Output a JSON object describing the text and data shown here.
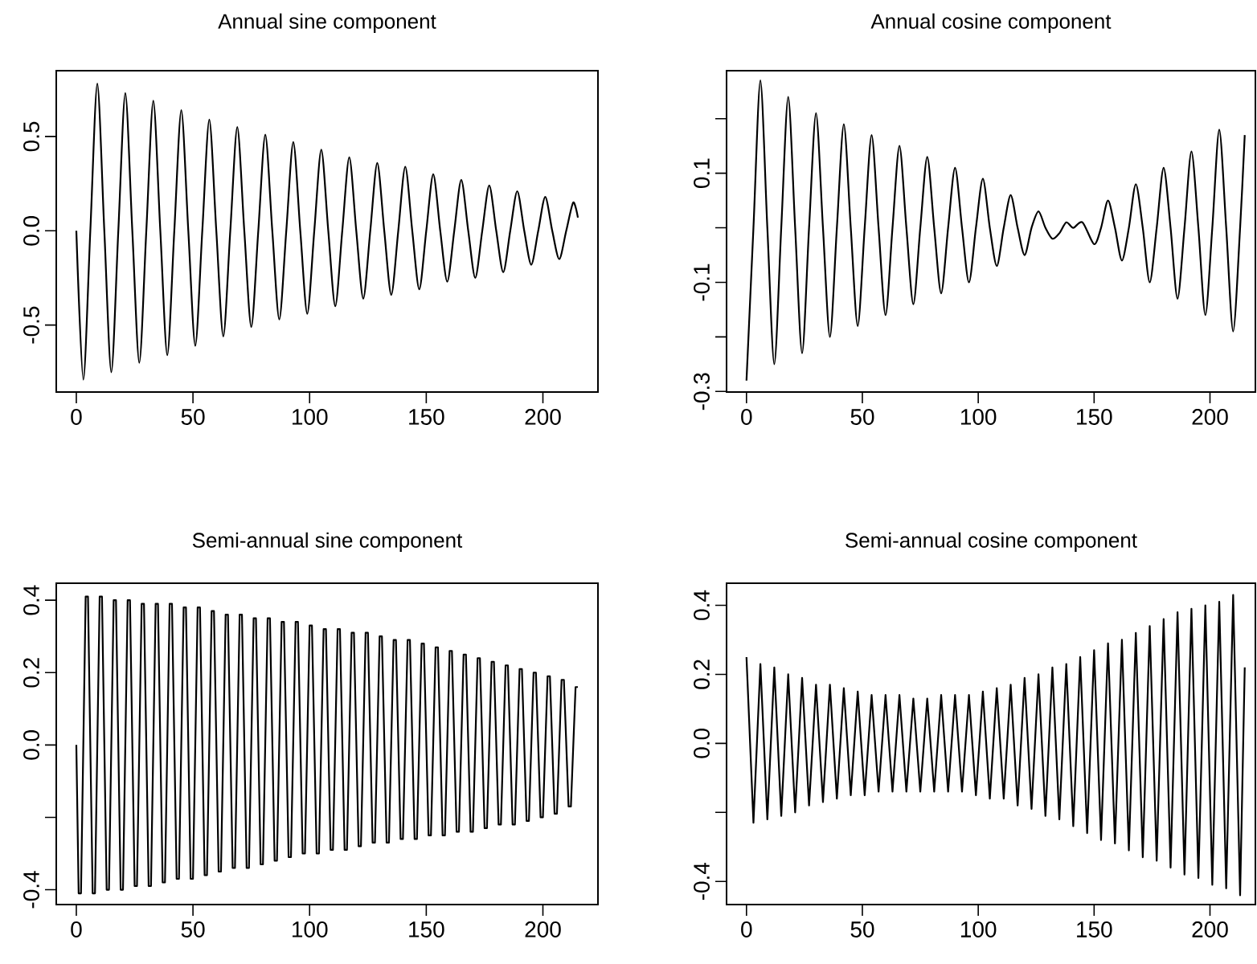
{
  "chart_data": [
    {
      "type": "line",
      "title": "Annual sine component",
      "color": "#000000",
      "xlim": [
        -8.6,
        223.6
      ],
      "xticks": [
        0,
        50,
        100,
        150,
        200
      ],
      "ylim": [
        -0.855,
        0.849
      ],
      "yticks": [
        -0.5,
        {
          "value": 0,
          "label": "0.0"
        },
        0.5
      ],
      "x": [
        0,
        3,
        6,
        9,
        12,
        15,
        18,
        21,
        24,
        27,
        30,
        33,
        36,
        39,
        42,
        45,
        48,
        51,
        54,
        57,
        60,
        63,
        66,
        69,
        72,
        75,
        78,
        81,
        84,
        87,
        90,
        93,
        96,
        99,
        102,
        105,
        108,
        111,
        114,
        117,
        120,
        123,
        126,
        129,
        132,
        135,
        138,
        141,
        144,
        147,
        150,
        153,
        156,
        159,
        162,
        165,
        168,
        171,
        174,
        177,
        180,
        183,
        186,
        189,
        192,
        195,
        198,
        201,
        204,
        207,
        210,
        213,
        215
      ],
      "values": [
        0,
        -0.79,
        0,
        0.78,
        0,
        -0.75,
        0,
        0.73,
        0,
        -0.7,
        0,
        0.69,
        0,
        -0.66,
        0,
        0.64,
        0,
        -0.61,
        0,
        0.59,
        0,
        -0.56,
        0,
        0.55,
        0,
        -0.51,
        0,
        0.51,
        0,
        -0.47,
        0,
        0.47,
        0,
        -0.44,
        0,
        0.43,
        0,
        -0.4,
        0,
        0.39,
        0,
        -0.36,
        0,
        0.36,
        0,
        -0.34,
        0,
        0.34,
        0,
        -0.31,
        0,
        0.3,
        0,
        -0.27,
        0,
        0.27,
        0,
        -0.25,
        0,
        0.24,
        0,
        -0.22,
        0,
        0.21,
        0,
        -0.18,
        0,
        0.18,
        0,
        -0.15,
        0,
        0.15,
        0.07
      ]
    },
    {
      "type": "line",
      "title": "Annual cosine component",
      "color": "#000000",
      "xlim": [
        -8.6,
        219.6
      ],
      "xticks": [
        0,
        50,
        100,
        150,
        200
      ],
      "ylim": [
        -0.301,
        0.288
      ],
      "yticks": [
        -0.3,
        {
          "value": -0.2,
          "label": null
        },
        -0.1,
        {
          "value": 0,
          "label": null
        },
        0.1,
        {
          "value": 0.2,
          "label": null
        }
      ],
      "x": [
        0,
        3,
        6,
        9,
        12,
        15,
        18,
        21,
        24,
        27,
        30,
        33,
        36,
        39,
        42,
        45,
        48,
        51,
        54,
        57,
        60,
        63,
        66,
        69,
        72,
        75,
        78,
        81,
        84,
        87,
        90,
        93,
        96,
        99,
        102,
        105,
        108,
        111,
        114,
        117,
        120,
        123,
        126,
        129,
        132,
        135,
        138,
        141,
        145,
        150,
        153,
        156,
        159,
        162,
        165,
        168,
        171,
        174,
        177,
        180,
        183,
        186,
        189,
        192,
        195,
        198,
        201,
        204,
        207,
        210,
        213,
        215
      ],
      "values": [
        -0.28,
        0,
        0.27,
        0,
        -0.25,
        0,
        0.24,
        0,
        -0.23,
        0,
        0.21,
        0,
        -0.2,
        0,
        0.19,
        0,
        -0.18,
        0,
        0.17,
        0,
        -0.16,
        0,
        0.15,
        0,
        -0.14,
        0,
        0.13,
        0,
        -0.12,
        0,
        0.11,
        0,
        -0.1,
        0,
        0.09,
        0,
        -0.07,
        0,
        0.06,
        0,
        -0.05,
        0,
        0.03,
        0,
        -0.02,
        -0.01,
        0.01,
        0.0,
        0.01,
        -0.03,
        0,
        0.05,
        0,
        -0.06,
        0,
        0.08,
        0,
        -0.1,
        0,
        0.11,
        0,
        -0.13,
        0,
        0.14,
        0,
        -0.16,
        0,
        0.18,
        0,
        -0.19,
        0,
        0.17
      ]
    },
    {
      "type": "line",
      "title": "Semi-annual sine component",
      "color": "#000000",
      "xlim": [
        -8.6,
        223.6
      ],
      "xticks": [
        0,
        50,
        100,
        150,
        200
      ],
      "ylim": [
        -0.441,
        0.447
      ],
      "yticks": [
        -0.4,
        {
          "value": -0.2,
          "label": null
        },
        {
          "value": 0,
          "label": "0.0"
        },
        0.2,
        0.4
      ],
      "x": [
        0,
        1,
        2,
        4,
        5,
        7,
        8,
        10,
        11,
        13,
        14,
        16,
        17,
        19,
        20,
        22,
        23,
        25,
        26,
        28,
        29,
        31,
        32,
        34,
        35,
        37,
        38,
        40,
        41,
        43,
        44,
        46,
        47,
        49,
        50,
        52,
        53,
        55,
        56,
        58,
        59,
        61,
        62,
        64,
        65,
        67,
        68,
        70,
        71,
        73,
        74,
        76,
        77,
        79,
        80,
        82,
        83,
        85,
        86,
        88,
        89,
        91,
        92,
        94,
        95,
        97,
        98,
        100,
        101,
        103,
        104,
        106,
        107,
        109,
        110,
        112,
        113,
        115,
        116,
        118,
        119,
        121,
        122,
        124,
        125,
        127,
        128,
        130,
        131,
        133,
        134,
        136,
        137,
        139,
        140,
        142,
        143,
        145,
        146,
        148,
        149,
        151,
        152,
        154,
        155,
        157,
        158,
        160,
        161,
        163,
        164,
        166,
        167,
        169,
        170,
        172,
        173,
        175,
        176,
        178,
        179,
        181,
        182,
        184,
        185,
        187,
        188,
        190,
        191,
        193,
        194,
        196,
        197,
        199,
        200,
        202,
        203,
        205,
        206,
        208,
        209,
        211,
        212,
        214,
        215
      ],
      "values": [
        0,
        -0.41,
        -0.41,
        0.41,
        0.41,
        -0.41,
        -0.41,
        0.41,
        0.41,
        -0.4,
        -0.4,
        0.4,
        0.4,
        -0.4,
        -0.4,
        0.4,
        0.4,
        -0.39,
        -0.39,
        0.39,
        0.39,
        -0.39,
        -0.39,
        0.39,
        0.39,
        -0.38,
        -0.38,
        0.39,
        0.39,
        -0.37,
        -0.37,
        0.38,
        0.38,
        -0.37,
        -0.37,
        0.38,
        0.38,
        -0.36,
        -0.36,
        0.37,
        0.37,
        -0.35,
        -0.35,
        0.36,
        0.36,
        -0.34,
        -0.34,
        0.36,
        0.36,
        -0.34,
        -0.34,
        0.35,
        0.35,
        -0.33,
        -0.33,
        0.35,
        0.35,
        -0.32,
        -0.32,
        0.34,
        0.34,
        -0.31,
        -0.31,
        0.34,
        0.34,
        -0.3,
        -0.3,
        0.33,
        0.33,
        -0.3,
        -0.3,
        0.32,
        0.32,
        -0.29,
        -0.29,
        0.32,
        0.32,
        -0.29,
        -0.29,
        0.31,
        0.31,
        -0.28,
        -0.28,
        0.31,
        0.31,
        -0.27,
        -0.27,
        0.3,
        0.3,
        -0.27,
        -0.27,
        0.29,
        0.29,
        -0.26,
        -0.26,
        0.29,
        0.29,
        -0.26,
        -0.26,
        0.28,
        0.28,
        -0.25,
        -0.25,
        0.27,
        0.27,
        -0.25,
        -0.25,
        0.26,
        0.26,
        -0.24,
        -0.24,
        0.25,
        0.25,
        -0.24,
        -0.24,
        0.24,
        0.24,
        -0.23,
        -0.23,
        0.23,
        0.23,
        -0.22,
        -0.22,
        0.22,
        0.22,
        -0.22,
        -0.22,
        0.21,
        0.21,
        -0.21,
        -0.21,
        0.2,
        0.2,
        -0.2,
        -0.2,
        0.19,
        0.19,
        -0.19,
        -0.19,
        0.18,
        0.18,
        -0.17,
        -0.17,
        0.16,
        0.16
      ]
    },
    {
      "type": "line",
      "title": "Semi-annual cosine component",
      "color": "#000000",
      "xlim": [
        -8.6,
        219.6
      ],
      "xticks": [
        0,
        50,
        100,
        150,
        200
      ],
      "ylim": [
        -0.467,
        0.464
      ],
      "yticks": [
        -0.4,
        {
          "value": -0.2,
          "label": null
        },
        {
          "value": 0,
          "label": "0.0"
        },
        0.2,
        0.4
      ],
      "x": [
        0,
        3,
        6,
        9,
        12,
        15,
        18,
        21,
        24,
        27,
        30,
        33,
        36,
        39,
        42,
        45,
        48,
        51,
        54,
        57,
        60,
        63,
        66,
        69,
        72,
        75,
        78,
        81,
        84,
        87,
        90,
        93,
        96,
        99,
        102,
        105,
        108,
        111,
        114,
        117,
        120,
        123,
        126,
        129,
        132,
        135,
        138,
        141,
        144,
        147,
        150,
        153,
        156,
        159,
        162,
        165,
        168,
        171,
        174,
        177,
        180,
        183,
        186,
        189,
        192,
        195,
        198,
        201,
        204,
        207,
        210,
        213,
        215
      ],
      "values": [
        0.25,
        -0.23,
        0.23,
        -0.22,
        0.22,
        -0.21,
        0.2,
        -0.2,
        0.19,
        -0.18,
        0.17,
        -0.17,
        0.17,
        -0.16,
        0.16,
        -0.15,
        0.15,
        -0.15,
        0.14,
        -0.14,
        0.14,
        -0.14,
        0.14,
        -0.14,
        0.13,
        -0.14,
        0.13,
        -0.14,
        0.14,
        -0.14,
        0.14,
        -0.14,
        0.14,
        -0.15,
        0.15,
        -0.16,
        0.16,
        -0.16,
        0.17,
        -0.18,
        0.19,
        -0.19,
        0.2,
        -0.21,
        0.22,
        -0.22,
        0.23,
        -0.24,
        0.25,
        -0.26,
        0.27,
        -0.28,
        0.29,
        -0.29,
        0.3,
        -0.31,
        0.32,
        -0.33,
        0.34,
        -0.34,
        0.36,
        -0.36,
        0.38,
        -0.38,
        0.39,
        -0.39,
        0.4,
        -0.41,
        0.41,
        -0.42,
        0.43,
        -0.44,
        0.22
      ]
    }
  ]
}
